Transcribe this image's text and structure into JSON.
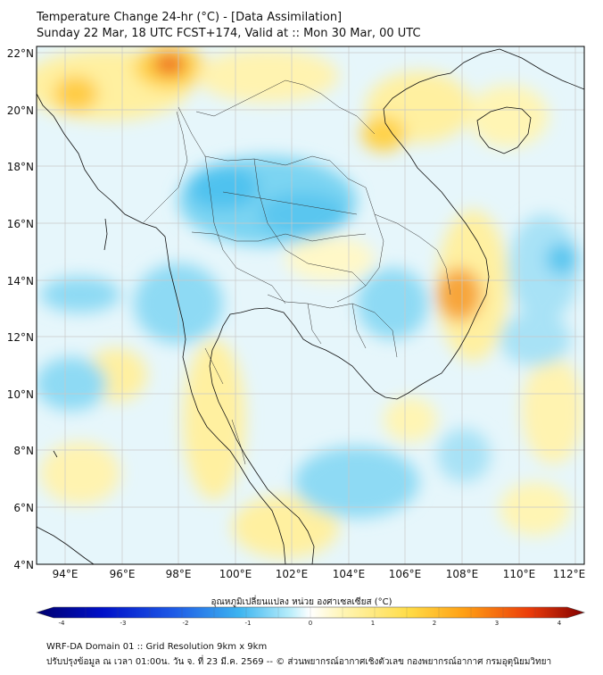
{
  "header": {
    "title": "Temperature Change 24-hr (°C) - [Data Assimilation]",
    "subtitle": "Sunday 22 Mar, 18 UTC FCST+174, Valid at :: Mon 30 Mar, 00 UTC"
  },
  "map": {
    "lat_labels": [
      "22°N",
      "20°N",
      "18°N",
      "16°N",
      "14°N",
      "12°N",
      "10°N",
      "8°N",
      "6°N",
      "4°N"
    ],
    "lon_labels": [
      "94°E",
      "96°E",
      "98°E",
      "100°E",
      "102°E",
      "104°E",
      "106°E",
      "108°E",
      "110°E",
      "112°E"
    ],
    "lat_range": [
      4,
      22.2
    ],
    "lon_range": [
      93,
      112.4
    ],
    "background_color": "#e6f6fb"
  },
  "colorbar": {
    "title": "อุณหภูมิเปลี่ยนแปลง หน่วย องศาเซลเซียส (°C)",
    "ticks": [
      "-4",
      "-3",
      "-2",
      "-1",
      "0",
      "1",
      "2",
      "3",
      "4"
    ],
    "range": [
      -4,
      4
    ],
    "colors": [
      "#00006e",
      "#0010c8",
      "#1e5ae6",
      "#3cb4f0",
      "#b4ecfa",
      "#ffffff",
      "#fff5b4",
      "#ffdc46",
      "#ffa014",
      "#eb3c0a",
      "#820000"
    ]
  },
  "footer": {
    "line1": "WRF-DA Domain 01 :: Grid Resolution 9km x 9km",
    "line2": "ปรับปรุงข้อมูล ณ เวลา 01:00น. วัน จ. ที่ 23 มี.ค. 2569 -- © ส่วนพยากรณ์อากาศเชิงตัวเลข กองพยากรณ์อากาศ กรมอุตุนิยมวิทยา"
  }
}
